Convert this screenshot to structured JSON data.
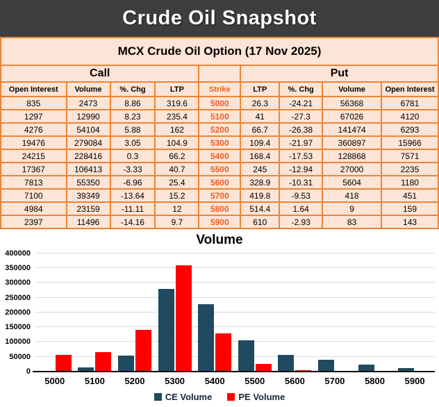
{
  "header": {
    "title": "Crude Oil Snapshot"
  },
  "subtitle": {
    "text": "MCX Crude Oil Option (17 Nov 2025)"
  },
  "colors": {
    "banner_bg": "#3e3e3e",
    "table_fill": "#fce4d6",
    "table_border": "#ee8434",
    "strike_text": "#f55b22",
    "ce_bar": "#1f4a5f",
    "pe_bar": "#fe0000",
    "gridline": "#d9d9d9"
  },
  "table": {
    "group_headers": {
      "call": "Call",
      "put": "Put"
    },
    "columns": [
      "Open Interest",
      "Volume",
      "%. Chg",
      "LTP",
      "Strike",
      "LTP",
      "%. Chg",
      "Volume",
      "Open Interest"
    ],
    "strike_col_index": 4,
    "rows": [
      [
        "835",
        "2473",
        "8.86",
        "319.6",
        "5000",
        "26.3",
        "-24.21",
        "56368",
        "6781"
      ],
      [
        "1297",
        "12990",
        "8.23",
        "235.4",
        "5100",
        "41",
        "-27.3",
        "67026",
        "4120"
      ],
      [
        "4276",
        "54104",
        "5.88",
        "162",
        "5200",
        "66.7",
        "-26.38",
        "141474",
        "6293"
      ],
      [
        "19476",
        "279084",
        "3.05",
        "104.9",
        "5300",
        "109.4",
        "-21.97",
        "360897",
        "15966"
      ],
      [
        "24215",
        "228416",
        "0.3",
        "66.2",
        "5400",
        "168.4",
        "-17.53",
        "128868",
        "7571"
      ],
      [
        "17367",
        "106413",
        "-3.33",
        "40.7",
        "5500",
        "245",
        "-12.94",
        "27000",
        "2235"
      ],
      [
        "7813",
        "55350",
        "-6.96",
        "25.4",
        "5600",
        "328.9",
        "-10.31",
        "5604",
        "1180"
      ],
      [
        "7100",
        "39349",
        "-13.64",
        "15.2",
        "5700",
        "419.8",
        "-9.53",
        "418",
        "451"
      ],
      [
        "4984",
        "23159",
        "-11.11",
        "12",
        "5800",
        "514.4",
        "1.64",
        "9",
        "159"
      ],
      [
        "2397",
        "11496",
        "-14.16",
        "9.7",
        "5900",
        "610",
        "-2.93",
        "83",
        "143"
      ]
    ]
  },
  "chart_data": {
    "type": "bar",
    "title": "Volume",
    "categories": [
      "5000",
      "5100",
      "5200",
      "5300",
      "5400",
      "5500",
      "5600",
      "5700",
      "5800",
      "5900"
    ],
    "series": [
      {
        "name": "CE Volume",
        "color": "#1f4a5f",
        "values": [
          2473,
          12990,
          54104,
          279084,
          228416,
          106413,
          55350,
          39349,
          23159,
          11496
        ]
      },
      {
        "name": "PE Volume",
        "color": "#fe0000",
        "values": [
          56368,
          67026,
          141474,
          360897,
          128868,
          27000,
          5604,
          418,
          9,
          83
        ]
      }
    ],
    "xlabel": "",
    "ylabel": "",
    "ylim": [
      0,
      400000
    ],
    "yticks": [
      0,
      50000,
      100000,
      150000,
      200000,
      250000,
      300000,
      350000,
      400000
    ],
    "grid": true,
    "legend_position": "bottom"
  }
}
